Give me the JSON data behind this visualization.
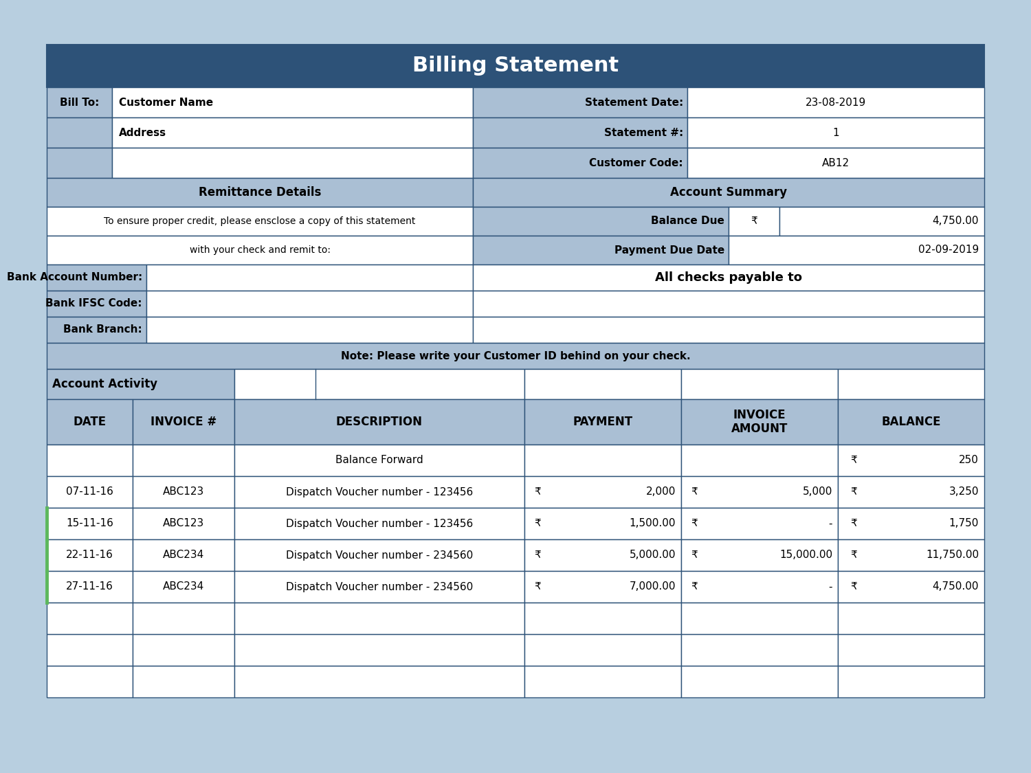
{
  "title": "Billing Statement",
  "bg_color": "#b8cfe0",
  "header_bg": "#2d5278",
  "header_text_color": "#ffffff",
  "section_header_bg": "#aabfd4",
  "table_bg": "#ffffff",
  "border_color": "#2d5278",
  "bill_to_label": "Bill To:",
  "customer_name": "Customer Name",
  "address": "Address",
  "statement_date_label": "Statement Date:",
  "statement_date": "23-08-2019",
  "statement_num_label": "Statement #:",
  "statement_num": "1",
  "customer_code_label": "Customer Code:",
  "customer_code": "AB12",
  "remittance_title": "Remittance Details",
  "account_summary_title": "Account Summary",
  "remittance_text1": "To ensure proper credit, please ensclose a copy of this statement",
  "remittance_text2": "with your check and remit to:",
  "balance_due_label": "Balance Due",
  "balance_due_currency": "₹",
  "balance_due_value": "4,750.00",
  "payment_due_label": "Payment Due Date",
  "payment_due_date": "02-09-2019",
  "bank_account_label": "Bank Account Number:",
  "bank_ifsc_label": "Bank IFSC Code:",
  "bank_branch_label": "Bank Branch:",
  "payable_to": "All checks payable to",
  "note_text": "Note: Please write your Customer ID behind on your check.",
  "account_activity": "Account Activity",
  "col_headers": [
    "DATE",
    "INVOICE #",
    "DESCRIPTION",
    "PAYMENT",
    "INVOICE\nAMOUNT",
    "BALANCE"
  ],
  "green_accent": "#5cb85c",
  "trans_rows": [
    [
      "07-11-16",
      "ABC123",
      "Dispatch Voucher number - 123456",
      "₹",
      "2,000",
      "₹",
      "5,000",
      "₹",
      "3,250"
    ],
    [
      "15-11-16",
      "ABC123",
      "Dispatch Voucher number - 123456",
      "₹",
      "1,500.00",
      "₹",
      "-",
      "₹",
      "1,750"
    ],
    [
      "22-11-16",
      "ABC234",
      "Dispatch Voucher number - 234560",
      "₹",
      "5,000.00",
      "₹",
      "15,000.00",
      "₹",
      "11,750.00"
    ],
    [
      "27-11-16",
      "ABC234",
      "Dispatch Voucher number - 234560",
      "₹",
      "7,000.00",
      "₹",
      "-",
      "₹",
      "4,750.00"
    ]
  ]
}
